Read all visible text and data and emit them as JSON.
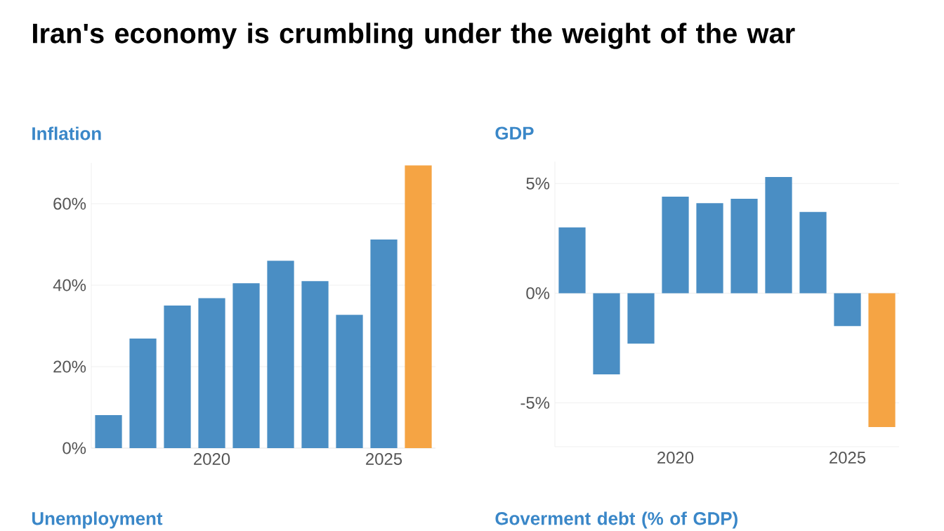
{
  "chart_data": [
    {
      "type": "other",
      "title": "Iran's economy is crumbling under the weight of the war"
    },
    {
      "type": "bar",
      "title": "Inflation",
      "x": [
        2017,
        2018,
        2019,
        2020,
        2021,
        2022,
        2023,
        2024,
        2025,
        2026
      ],
      "values": [
        8.1,
        26.9,
        35,
        36.8,
        40.5,
        46,
        41,
        32.7,
        51.2,
        69.4
      ],
      "colors": [
        "#4a8ec4",
        "#4a8ec4",
        "#4a8ec4",
        "#4a8ec4",
        "#4a8ec4",
        "#4a8ec4",
        "#4a8ec4",
        "#4a8ec4",
        "#4a8ec4",
        "#f5a444"
      ],
      "xlim": [
        2016.5,
        2026.5
      ],
      "ylim": [
        0,
        70
      ],
      "xticks": [
        2020,
        2025
      ],
      "yticks": [
        {
          "value": 0,
          "label": "0%"
        },
        {
          "value": 20,
          "label": "20%"
        },
        {
          "value": 40,
          "label": "40%"
        },
        {
          "value": 60,
          "label": "60%"
        }
      ],
      "grid": "y"
    },
    {
      "type": "bar",
      "title": "GDP",
      "x": [
        2017,
        2018,
        2019,
        2020,
        2021,
        2022,
        2023,
        2024,
        2025,
        2026
      ],
      "values": [
        3.0,
        -3.7,
        -2.3,
        4.4,
        4.1,
        4.3,
        5.3,
        3.7,
        -1.5,
        -6.1
      ],
      "colors": [
        "#4a8ec4",
        "#4a8ec4",
        "#4a8ec4",
        "#4a8ec4",
        "#4a8ec4",
        "#4a8ec4",
        "#4a8ec4",
        "#4a8ec4",
        "#4a8ec4",
        "#f5a444"
      ],
      "xlim": [
        2016.5,
        2026.5
      ],
      "ylim": [
        -7,
        6
      ],
      "xticks": [
        2020,
        2025
      ],
      "yticks": [
        {
          "value": -5,
          "label": "-5%"
        },
        {
          "value": 0,
          "label": "0%"
        },
        {
          "value": 5,
          "label": "5%"
        }
      ],
      "grid": "y"
    },
    {
      "type": "other",
      "title": "Unemployment"
    },
    {
      "type": "other",
      "title": "Goverment debt (% of GDP)"
    }
  ]
}
